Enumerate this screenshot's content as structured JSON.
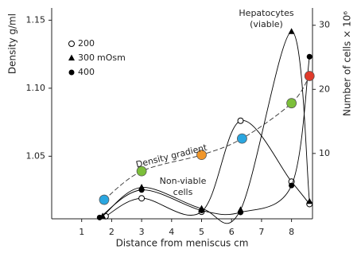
{
  "chart_data": {
    "type": "line",
    "xlabel": "Distance from meniscus cm",
    "ylabel": "Density g/ml",
    "y2label": "Number of cells × 10⁶",
    "xlim": [
      0,
      8.7
    ],
    "xticks": [
      1,
      2,
      3,
      4,
      5,
      6,
      7,
      8
    ],
    "ylim": [
      1.004,
      1.159
    ],
    "yticks": [
      1.05,
      {
        "value": 1.1,
        "label": "1.10"
      },
      1.15
    ],
    "y2lim": [
      -0.2,
      32.7
    ],
    "y2ticks": [
      10,
      20,
      30
    ],
    "legend_title": "mOsm",
    "series": [
      {
        "name": "200",
        "marker": "open-circle",
        "color": "#000000",
        "axis": "y2",
        "x": [
          1.8,
          3,
          5,
          6.3,
          8,
          8.6
        ],
        "values": [
          0.2,
          3.0,
          0.9,
          15.1,
          5.6,
          2.1
        ]
      },
      {
        "name": "300",
        "marker": "triangle",
        "color": "#000000",
        "axis": "y2",
        "x": [
          1.7,
          3,
          5,
          6.3,
          8,
          8.6
        ],
        "values": [
          0.2,
          4.7,
          1.4,
          1.2,
          29.0,
          2.5
        ]
      },
      {
        "name": "400",
        "marker": "filled-circle",
        "color": "#000000",
        "axis": "y2",
        "x": [
          1.6,
          3,
          5,
          6.3,
          8,
          8.6
        ],
        "values": [
          0.0,
          4.3,
          1.1,
          0.8,
          5.0,
          25.1
        ]
      },
      {
        "name": "Density gradient",
        "marker": "big-circle",
        "color": "#333333",
        "axis": "y",
        "dashed": true,
        "x": [
          1.75,
          3,
          5,
          6.35,
          8,
          8.6
        ],
        "values": [
          1.018,
          1.039,
          1.051,
          1.063,
          1.089,
          1.109
        ],
        "colors": [
          "#2aa6e0",
          "#7cbf3a",
          "#f0962a",
          "#2aa6e0",
          "#7cbf3a",
          "#e03a2a"
        ]
      }
    ],
    "annotations": [
      [
        "Hepatocytes",
        "(viable)"
      ],
      [
        "Non-viable",
        "cells"
      ]
    ]
  }
}
